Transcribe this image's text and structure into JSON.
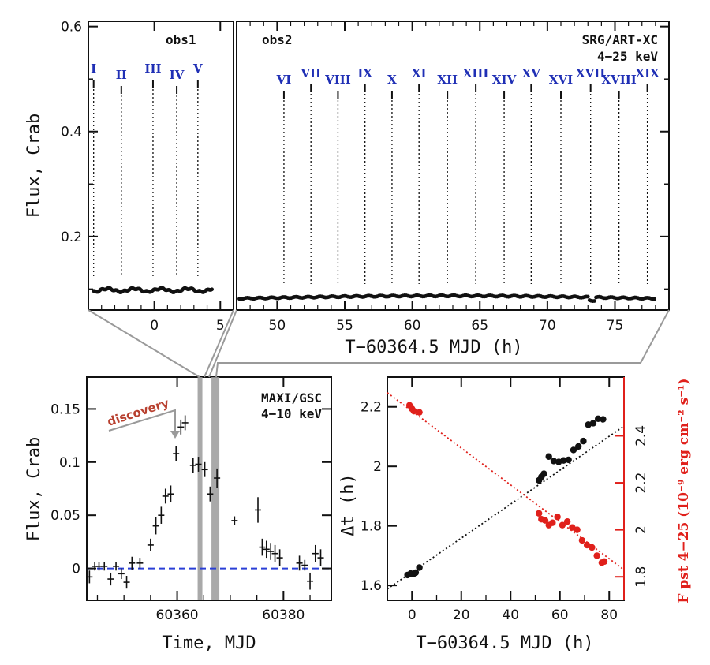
{
  "colors": {
    "ink": "#111111",
    "roman": "#1f2fb5",
    "red": "#e0201b",
    "dashed_blue": "#2a3fd6",
    "discovery": "#b8402f",
    "band": "#9a9a9a"
  },
  "chart_data": [
    {
      "id": "top-left",
      "type": "scatter",
      "ylabel": "Flux, Crab",
      "ylim": [
        0.06,
        0.61
      ],
      "xlim": [
        -5,
        6
      ],
      "xticks": [
        0,
        5
      ],
      "yticks": [
        0.2,
        0.4,
        0.6
      ],
      "ytick_labels": [
        "0.2",
        "0.4",
        "0.6"
      ],
      "annotation": "obs1",
      "markers": [
        {
          "label": "I",
          "x": -4.6
        },
        {
          "label": "II",
          "x": -2.5
        },
        {
          "label": "III",
          "x": -0.1
        },
        {
          "label": "IV",
          "x": 1.7
        },
        {
          "label": "V",
          "x": 3.3
        }
      ],
      "series": {
        "x_start": -4.6,
        "x_end": 4.4,
        "y_mean": 0.098,
        "amplitude": 0.003
      }
    },
    {
      "id": "top-right",
      "type": "scatter",
      "xlabel": "T−60364.5 MJD (h)",
      "xlim": [
        47,
        79
      ],
      "xticks": [
        50,
        55,
        60,
        65,
        70,
        75
      ],
      "ylim": [
        0.06,
        0.61
      ],
      "annotation": "obs2",
      "instrument": "SRG/ART-XC",
      "band": "4−25 keV",
      "markers": [
        {
          "label": "VI",
          "x": 50.5
        },
        {
          "label": "VII",
          "x": 52.5
        },
        {
          "label": "VIII",
          "x": 54.5
        },
        {
          "label": "IX",
          "x": 56.5
        },
        {
          "label": "X",
          "x": 58.5
        },
        {
          "label": "XI",
          "x": 60.5
        },
        {
          "label": "XII",
          "x": 62.6
        },
        {
          "label": "XIII",
          "x": 64.7
        },
        {
          "label": "XIV",
          "x": 66.8
        },
        {
          "label": "XV",
          "x": 68.8
        },
        {
          "label": "XVI",
          "x": 71.0
        },
        {
          "label": "XVII",
          "x": 73.2
        },
        {
          "label": "XVIII",
          "x": 75.3
        },
        {
          "label": "XIX",
          "x": 77.4
        }
      ],
      "series": {
        "x_start": 47.2,
        "x_end": 78.0,
        "y_start": 0.082,
        "y_end": 0.083,
        "y_mid": 0.087
      }
    },
    {
      "id": "bottom-left",
      "type": "scatter",
      "xlabel": "Time, MJD",
      "ylabel": "Flux, Crab",
      "xlim": [
        60343,
        60389
      ],
      "ylim": [
        -0.03,
        0.18
      ],
      "xticks": [
        60360,
        60380
      ],
      "yticks": [
        0,
        0.05,
        0.1,
        0.15
      ],
      "ytick_labels": [
        "0",
        "0.05",
        "0.1",
        "0.15"
      ],
      "instrument": "MAXI/GSC",
      "band": "4−10 keV",
      "annotation": "discovery",
      "bands": [
        60364.3,
        60367.2
      ],
      "points": [
        {
          "x": 60343.5,
          "y": -0.008,
          "e": 0.006
        },
        {
          "x": 60344.5,
          "y": 0.002,
          "e": 0.004
        },
        {
          "x": 60345.3,
          "y": 0.002,
          "e": 0.004
        },
        {
          "x": 60346.3,
          "y": 0.002,
          "e": 0.004
        },
        {
          "x": 60347.5,
          "y": -0.01,
          "e": 0.006
        },
        {
          "x": 60348.5,
          "y": 0.002,
          "e": 0.004
        },
        {
          "x": 60349.5,
          "y": -0.005,
          "e": 0.005
        },
        {
          "x": 60350.5,
          "y": -0.013,
          "e": 0.006
        },
        {
          "x": 60351.5,
          "y": 0.005,
          "e": 0.006
        },
        {
          "x": 60353.0,
          "y": 0.005,
          "e": 0.005
        },
        {
          "x": 60355.0,
          "y": 0.022,
          "e": 0.006
        },
        {
          "x": 60356.0,
          "y": 0.04,
          "e": 0.008
        },
        {
          "x": 60357.0,
          "y": 0.05,
          "e": 0.008
        },
        {
          "x": 60357.8,
          "y": 0.068,
          "e": 0.007
        },
        {
          "x": 60358.8,
          "y": 0.07,
          "e": 0.008
        },
        {
          "x": 60359.8,
          "y": 0.108,
          "e": 0.007
        },
        {
          "x": 60360.7,
          "y": 0.133,
          "e": 0.007
        },
        {
          "x": 60361.5,
          "y": 0.137,
          "e": 0.007
        },
        {
          "x": 60363.0,
          "y": 0.097,
          "e": 0.007
        },
        {
          "x": 60364.0,
          "y": 0.098,
          "e": 0.007
        },
        {
          "x": 60365.2,
          "y": 0.093,
          "e": 0.007
        },
        {
          "x": 60366.2,
          "y": 0.07,
          "e": 0.007
        },
        {
          "x": 60367.5,
          "y": 0.085,
          "e": 0.009
        },
        {
          "x": 60370.8,
          "y": 0.045,
          "e": 0.004
        },
        {
          "x": 60375.2,
          "y": 0.055,
          "e": 0.012
        },
        {
          "x": 60376.0,
          "y": 0.02,
          "e": 0.008
        },
        {
          "x": 60376.8,
          "y": 0.018,
          "e": 0.008
        },
        {
          "x": 60377.6,
          "y": 0.016,
          "e": 0.008
        },
        {
          "x": 60378.4,
          "y": 0.014,
          "e": 0.008
        },
        {
          "x": 60379.3,
          "y": 0.01,
          "e": 0.008
        },
        {
          "x": 60383.0,
          "y": 0.005,
          "e": 0.007
        },
        {
          "x": 60384.0,
          "y": 0.003,
          "e": 0.005
        },
        {
          "x": 60385.0,
          "y": -0.012,
          "e": 0.008
        },
        {
          "x": 60386.0,
          "y": 0.014,
          "e": 0.008
        },
        {
          "x": 60387.0,
          "y": 0.01,
          "e": 0.008
        }
      ]
    },
    {
      "id": "bottom-right",
      "type": "scatter",
      "xlabel": "T−60364.5 MJD (h)",
      "ylabel": "Δt (h)",
      "ylabel_right": "F pst 4−25 (10⁻⁹ erg cm⁻² s⁻¹)",
      "xlim": [
        -10,
        86
      ],
      "xticks": [
        0,
        20,
        40,
        60,
        80
      ],
      "ylim": [
        1.55,
        2.3
      ],
      "yticks": [
        1.6,
        1.8,
        2.0,
        2.2
      ],
      "ytick_labels": [
        "1.6",
        "1.8",
        "2",
        "2.2"
      ],
      "ylim_right": [
        1.7,
        2.65
      ],
      "yticks_right": [
        1.8,
        2.0,
        2.2,
        2.4
      ],
      "ytick_labels_right": [
        "1.8",
        "2",
        "2.2",
        "2.4"
      ],
      "series": [
        {
          "color": "#111111",
          "fit": {
            "slope": 0.0057,
            "intercept": 1.645
          },
          "points": [
            [
              -1.8,
              1.635
            ],
            [
              -0.5,
              1.64
            ],
            [
              0.5,
              1.638
            ],
            [
              1.5,
              1.643
            ],
            [
              3.0,
              1.66
            ],
            [
              51.5,
              1.953
            ],
            [
              52.5,
              1.965
            ],
            [
              53.5,
              1.975
            ],
            [
              55.5,
              2.033
            ],
            [
              57.5,
              2.018
            ],
            [
              59.5,
              2.015
            ],
            [
              61.5,
              2.02
            ],
            [
              63.5,
              2.022
            ],
            [
              65.5,
              2.055
            ],
            [
              67.5,
              2.067
            ],
            [
              69.5,
              2.085
            ],
            [
              71.5,
              2.14
            ],
            [
              73.5,
              2.145
            ],
            [
              75.5,
              2.16
            ],
            [
              77.5,
              2.158
            ]
          ]
        },
        {
          "color": "#e0201b",
          "fit": {
            "slope": -0.00785,
            "intercept": 2.505
          },
          "points": [
            [
              -1.0,
              2.53
            ],
            [
              0.0,
              2.515
            ],
            [
              0.8,
              2.505
            ],
            [
              3.0,
              2.5
            ],
            [
              51.5,
              2.07
            ],
            [
              52.5,
              2.045
            ],
            [
              54.0,
              2.04
            ],
            [
              55.5,
              2.02
            ],
            [
              57.0,
              2.03
            ],
            [
              59.0,
              2.055
            ],
            [
              61.0,
              2.02
            ],
            [
              63.0,
              2.035
            ],
            [
              65.0,
              2.01
            ],
            [
              67.0,
              2.0
            ],
            [
              69.0,
              1.955
            ],
            [
              71.0,
              1.935
            ],
            [
              73.0,
              1.925
            ],
            [
              75.0,
              1.89
            ],
            [
              77.0,
              1.86
            ],
            [
              78.0,
              1.865
            ]
          ]
        }
      ]
    }
  ]
}
